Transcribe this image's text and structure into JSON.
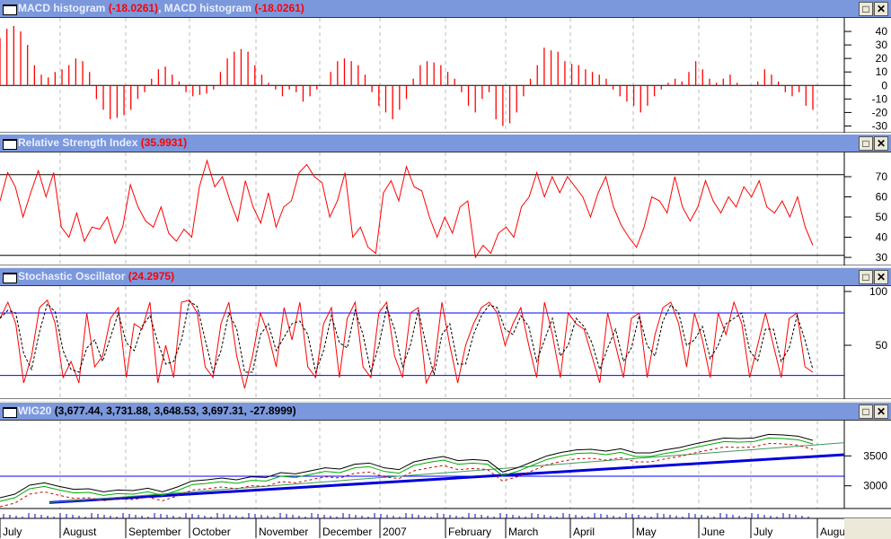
{
  "panels": [
    {
      "id": "macd",
      "title": "MACD histogram",
      "value": "(-18.0261)",
      "sep": ", ",
      "title2": "MACD histogram",
      "value2": "(-18.0261)"
    },
    {
      "id": "rsi",
      "title": "Relative Strength Index",
      "value": "(35.9931)"
    },
    {
      "id": "stoch",
      "title": "Stochastic Oscillator",
      "value": "(24.2975)"
    },
    {
      "id": "wig",
      "title": "WIG20",
      "value": "(3,677.44, 3,731.88, 3,648.53, 3,697.31, -27.8999)"
    }
  ],
  "buttons": {
    "maximize": "□",
    "close": "✕"
  },
  "colors": {
    "header": "#7b98dc",
    "series": "#ff0000",
    "guide": "#0000ff",
    "trend": "#0000dd"
  },
  "chart_data": [
    {
      "type": "bar",
      "title": "MACD histogram",
      "yticks": [
        "40",
        "30",
        "20",
        "10",
        "0",
        "-10",
        "-20",
        "-30"
      ],
      "ylim": [
        -35,
        50
      ],
      "values": [
        35,
        42,
        44,
        40,
        30,
        15,
        8,
        6,
        10,
        12,
        15,
        20,
        18,
        10,
        -10,
        -18,
        -25,
        -24,
        -22,
        -18,
        -10,
        -5,
        5,
        12,
        14,
        8,
        3,
        -5,
        -8,
        -7,
        -6,
        -3,
        10,
        20,
        25,
        27,
        25,
        15,
        8,
        2,
        -3,
        -8,
        -3,
        -5,
        -12,
        -8,
        -3,
        0,
        10,
        18,
        20,
        18,
        15,
        8,
        -5,
        -15,
        -20,
        -25,
        -18,
        -10,
        5,
        15,
        18,
        17,
        15,
        10,
        5,
        -5,
        -15,
        -20,
        -10,
        -5,
        -25,
        -30,
        -28,
        -20,
        -8,
        5,
        15,
        28,
        26,
        25,
        18,
        16,
        15,
        12,
        10,
        8,
        5,
        -3,
        -8,
        -12,
        -15,
        -20,
        -15,
        -8,
        -3,
        2,
        5,
        3,
        10,
        18,
        12,
        5,
        2,
        5,
        8,
        2,
        0,
        0,
        3,
        12,
        8,
        3,
        -5,
        -8,
        -5,
        -15,
        -18
      ]
    },
    {
      "type": "line",
      "title": "Relative Strength Index",
      "yticks": [
        "70",
        "60",
        "50",
        "40",
        "30"
      ],
      "ylim": [
        26,
        82
      ],
      "guides": [
        71,
        31
      ],
      "values": [
        58,
        72,
        65,
        50,
        62,
        73,
        60,
        72,
        45,
        40,
        52,
        38,
        45,
        44,
        50,
        37,
        45,
        66,
        55,
        48,
        45,
        55,
        42,
        38,
        44,
        40,
        65,
        78,
        65,
        70,
        58,
        48,
        68,
        55,
        47,
        62,
        45,
        55,
        58,
        72,
        76,
        70,
        67,
        50,
        58,
        72,
        40,
        45,
        35,
        32,
        62,
        68,
        58,
        75,
        65,
        63,
        50,
        40,
        50,
        42,
        55,
        58,
        30,
        36,
        32,
        42,
        45,
        40,
        55,
        60,
        72,
        60,
        70,
        62,
        70,
        65,
        60,
        50,
        62,
        70,
        55,
        46,
        40,
        35,
        45,
        60,
        58,
        52,
        70,
        55,
        48,
        55,
        68,
        58,
        52,
        60,
        55,
        65,
        60,
        68,
        55,
        52,
        58,
        50,
        60,
        45,
        36
      ]
    },
    {
      "type": "line",
      "title": "Stochastic Oscillator",
      "yticks": [
        "100",
        "50"
      ],
      "ylim": [
        0,
        105
      ],
      "guides": [
        80,
        22
      ],
      "values": [
        75,
        90,
        70,
        15,
        40,
        85,
        92,
        70,
        20,
        35,
        15,
        80,
        30,
        40,
        75,
        85,
        20,
        70,
        65,
        90,
        15,
        50,
        20,
        90,
        92,
        80,
        30,
        20,
        70,
        90,
        40,
        10,
        40,
        80,
        60,
        30,
        85,
        55,
        90,
        30,
        20,
        70,
        85,
        20,
        75,
        90,
        30,
        20,
        80,
        90,
        40,
        20,
        80,
        85,
        15,
        30,
        90,
        50,
        15,
        50,
        70,
        85,
        90,
        80,
        50,
        70,
        85,
        50,
        20,
        90,
        60,
        20,
        80,
        70,
        65,
        40,
        15,
        80,
        50,
        20,
        75,
        80,
        20,
        60,
        85,
        90,
        70,
        30,
        80,
        55,
        20,
        80,
        60,
        90,
        70,
        20,
        50,
        80,
        50,
        20,
        75,
        80,
        30,
        25
      ]
    },
    {
      "type": "line",
      "title": "WIG20",
      "yticks": [
        "3500",
        "3000"
      ],
      "ylim": [
        2620,
        4090
      ],
      "x_labels": [
        "July",
        "August",
        "September",
        "October",
        "November",
        "December",
        "2007",
        "February",
        "March",
        "April",
        "May",
        "June",
        "July",
        "Augu"
      ],
      "values": [
        2800,
        2860,
        3010,
        3050,
        2990,
        2940,
        2950,
        2900,
        2930,
        2920,
        2960,
        2900,
        2980,
        3080,
        3100,
        3130,
        3100,
        3150,
        3140,
        3220,
        3200,
        3250,
        3300,
        3280,
        3360,
        3380,
        3300,
        3270,
        3400,
        3450,
        3490,
        3420,
        3440,
        3420,
        3230,
        3300,
        3400,
        3500,
        3560,
        3600,
        3610,
        3580,
        3620,
        3550,
        3550,
        3600,
        3640,
        3700,
        3750,
        3800,
        3790,
        3800,
        3860,
        3850,
        3830,
        3760
      ],
      "trend_blue": [
        2720,
        3520
      ],
      "trend_green": [
        2720,
        3720
      ],
      "horizontal": 3160
    }
  ]
}
